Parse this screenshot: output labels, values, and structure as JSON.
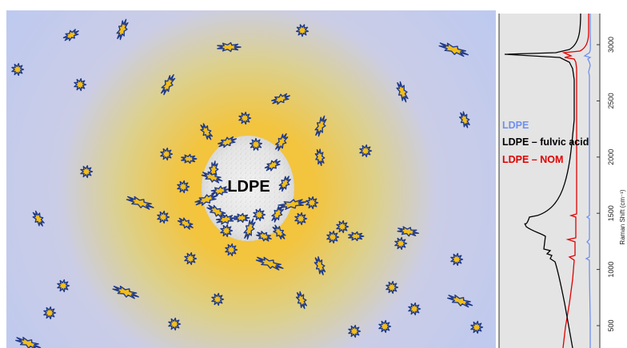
{
  "illustration": {
    "center_label": "LDPE",
    "colors": {
      "background_outer": "#c4cdf1",
      "halo": "#f2c23c",
      "core": "#e6e6e6",
      "particle_fill": "#f2be1c",
      "particle_outline": "#1f3a8a"
    }
  },
  "spectrum": {
    "axis_title": "Raman Shift (cm⁻¹)",
    "ticks": [
      "500",
      "1000",
      "1500",
      "2000",
      "2500",
      "3000"
    ],
    "legend": [
      {
        "label": "LDPE",
        "color": "#6f8ff0"
      },
      {
        "label": "LDPE – fulvic acid",
        "color": "#000000"
      },
      {
        "label": "LDPE – NOM",
        "color": "#e00000"
      }
    ],
    "panel_background": "#e4e4e4"
  }
}
